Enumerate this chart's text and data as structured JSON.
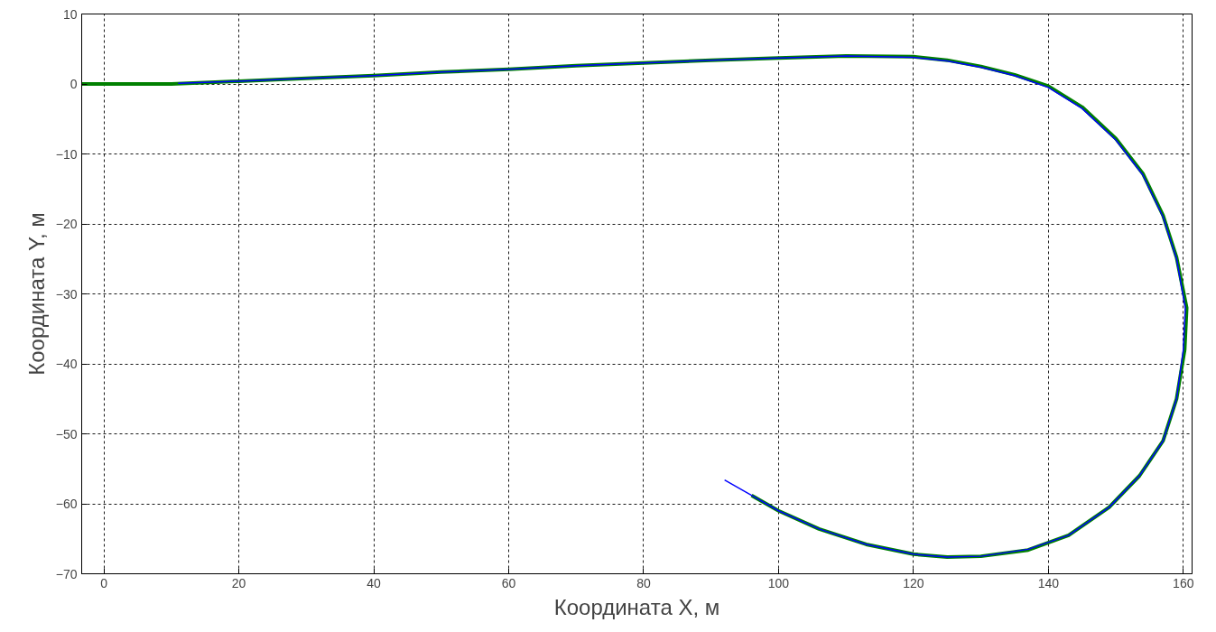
{
  "chart_data": {
    "type": "line",
    "xlabel": "Координата X, м",
    "ylabel": "Координата Y, м",
    "xlim": [
      -3.3,
      161.3
    ],
    "ylim": [
      -70,
      10
    ],
    "xticks": [
      0,
      20,
      40,
      60,
      80,
      100,
      120,
      140,
      160
    ],
    "yticks": [
      -70,
      -60,
      -50,
      -40,
      -30,
      -20,
      -10,
      0,
      10
    ],
    "grid": true,
    "series": [
      {
        "color": "#0000ff",
        "x": [
          11,
          20,
          30,
          40,
          50,
          60,
          70,
          80,
          90,
          100,
          110,
          120,
          125,
          130,
          135,
          140,
          145,
          150,
          154,
          157,
          159,
          160.3,
          160,
          159,
          157,
          153.5,
          149,
          143,
          137,
          130,
          125,
          120,
          113,
          106,
          100,
          96,
          92
        ],
        "values": [
          0.1,
          0.4,
          0.8,
          1.2,
          1.7,
          2.1,
          2.6,
          3,
          3.4,
          3.7,
          4,
          3.8,
          3.3,
          2.4,
          1.2,
          -0.5,
          -3.5,
          -8,
          -13,
          -19,
          -25,
          -32,
          -38,
          -45,
          -51,
          -56,
          -60.5,
          -64.5,
          -66.5,
          -67.5,
          -67.6,
          -67.2,
          -65.8,
          -63.6,
          -61,
          -58.8,
          -56.6
        ]
      },
      {
        "color": "#008000",
        "x": [
          -3.3,
          10,
          20,
          30,
          40,
          50,
          60,
          70,
          80,
          90,
          100,
          110,
          120,
          125,
          130,
          135,
          140,
          145,
          150,
          154,
          157,
          159,
          160.5,
          160.2,
          159,
          157,
          153.5,
          149,
          143,
          137,
          130,
          125,
          120,
          113,
          106,
          100,
          96
        ],
        "values": [
          0,
          0,
          0.4,
          0.8,
          1.2,
          1.7,
          2.1,
          2.6,
          3,
          3.4,
          3.7,
          4,
          3.9,
          3.4,
          2.5,
          1.3,
          -0.3,
          -3.3,
          -7.8,
          -12.8,
          -18.8,
          -24.8,
          -32,
          -38,
          -45,
          -51,
          -56,
          -60.5,
          -64.5,
          -66.6,
          -67.5,
          -67.6,
          -67.2,
          -65.8,
          -63.6,
          -61,
          -58.8
        ]
      }
    ]
  }
}
